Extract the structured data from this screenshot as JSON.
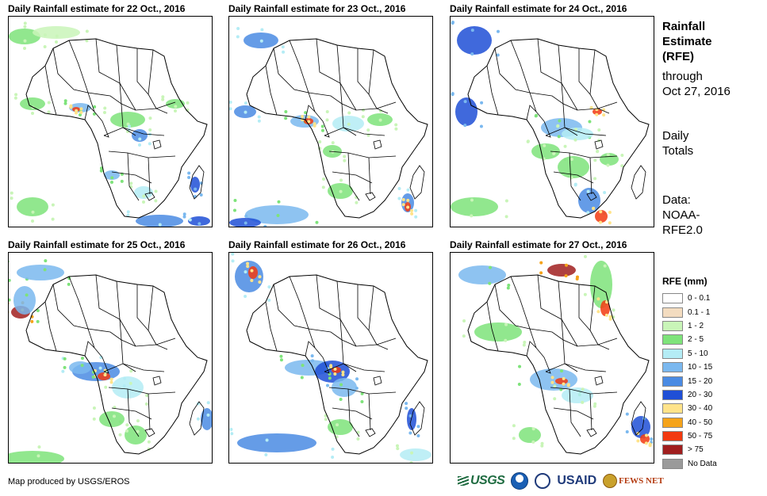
{
  "panels": [
    {
      "title": "Daily Rainfall estimate for 22 Oct., 2016"
    },
    {
      "title": "Daily Rainfall estimate for 23 Oct., 2016"
    },
    {
      "title": "Daily Rainfall estimate for 24 Oct., 2016"
    },
    {
      "title": "Daily Rainfall estimate for 25 Oct., 2016"
    },
    {
      "title": "Daily Rainfall estimate for 26 Oct., 2016"
    },
    {
      "title": "Daily Rainfall estimate for 27 Oct., 2016"
    }
  ],
  "side": {
    "title_lines": [
      "Rainfall",
      "Estimate",
      "(RFE)"
    ],
    "through_lines": [
      "through",
      "Oct 27, 2016"
    ],
    "totals_lines": [
      "Daily",
      "Totals"
    ],
    "data_lines": [
      "Data:",
      "NOAA-",
      "RFE2.0"
    ]
  },
  "legend": {
    "title": "RFE (mm)",
    "items": [
      {
        "label": "0 - 0.1",
        "color": "#ffffff"
      },
      {
        "label": "0.1 - 1",
        "color": "#f3dcc0"
      },
      {
        "label": "1 - 2",
        "color": "#c9f5b8"
      },
      {
        "label": "2 - 5",
        "color": "#7ee37a"
      },
      {
        "label": "5 - 10",
        "color": "#b4ecf5"
      },
      {
        "label": "10 - 15",
        "color": "#7ab8ef"
      },
      {
        "label": "15 - 20",
        "color": "#4a8be3"
      },
      {
        "label": "20 - 30",
        "color": "#1f4fd6"
      },
      {
        "label": "30 - 40",
        "color": "#ffe38a"
      },
      {
        "label": "40 - 50",
        "color": "#f5a31a"
      },
      {
        "label": "50 - 75",
        "color": "#f23a10"
      },
      {
        "label": "> 75",
        "color": "#a01e1e"
      },
      {
        "label": "No Data",
        "color": "#9a9a9a"
      }
    ]
  },
  "footer": {
    "credit": "Map produced by USGS/EROS",
    "logos": [
      "USGS",
      "NOAA",
      "USDA",
      "USAID",
      "FEWS NET"
    ]
  }
}
